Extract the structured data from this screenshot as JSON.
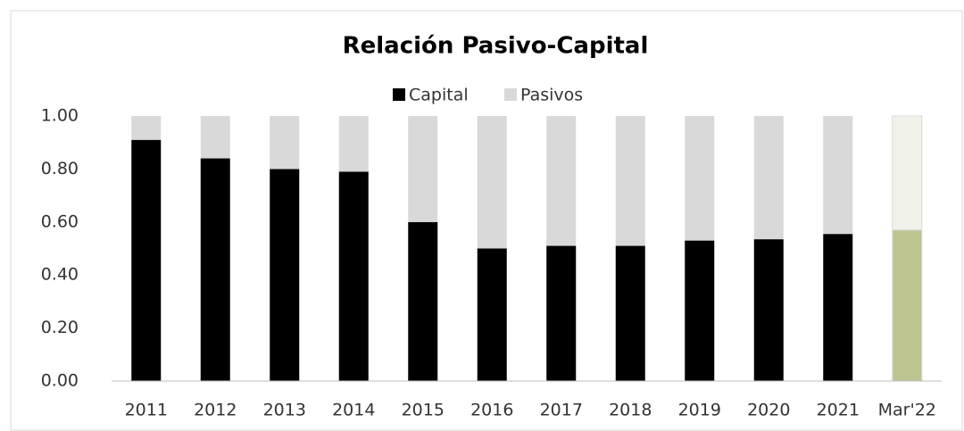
{
  "chart_data": {
    "type": "stacked_bar",
    "title": "Relación Pasivo-Capital",
    "categories": [
      "2011",
      "2012",
      "2013",
      "2014",
      "2015",
      "2016",
      "2017",
      "2018",
      "2019",
      "2020",
      "2021",
      "Mar'22"
    ],
    "series": [
      {
        "name": "Capital",
        "color": "#000000",
        "colors": [
          "#000000",
          "#000000",
          "#000000",
          "#000000",
          "#000000",
          "#000000",
          "#000000",
          "#000000",
          "#000000",
          "#000000",
          "#000000",
          "#bdc48f"
        ],
        "values": [
          0.91,
          0.84,
          0.8,
          0.79,
          0.6,
          0.5,
          0.51,
          0.51,
          0.53,
          0.535,
          0.555,
          0.57
        ]
      },
      {
        "name": "Pasivos",
        "color": "#d9d9d9",
        "colors": [
          "#d9d9d9",
          "#d9d9d9",
          "#d9d9d9",
          "#d9d9d9",
          "#d9d9d9",
          "#d9d9d9",
          "#d9d9d9",
          "#d9d9d9",
          "#d9d9d9",
          "#d9d9d9",
          "#d9d9d9",
          "#f1f2ea"
        ],
        "values": [
          0.09,
          0.16,
          0.2,
          0.21,
          0.4,
          0.5,
          0.49,
          0.49,
          0.47,
          0.465,
          0.445,
          0.43
        ]
      }
    ],
    "ylim": [
      0,
      1
    ],
    "yticks": [
      {
        "value": 0,
        "label": "0.00"
      },
      {
        "value": 0.2,
        "label": "0.20"
      },
      {
        "value": 0.4,
        "label": "0.40"
      },
      {
        "value": 0.6,
        "label": "0.60"
      },
      {
        "value": 0.8,
        "label": "0.80"
      },
      {
        "value": 1,
        "label": "1.00"
      }
    ],
    "grid": false,
    "legend": "top"
  }
}
